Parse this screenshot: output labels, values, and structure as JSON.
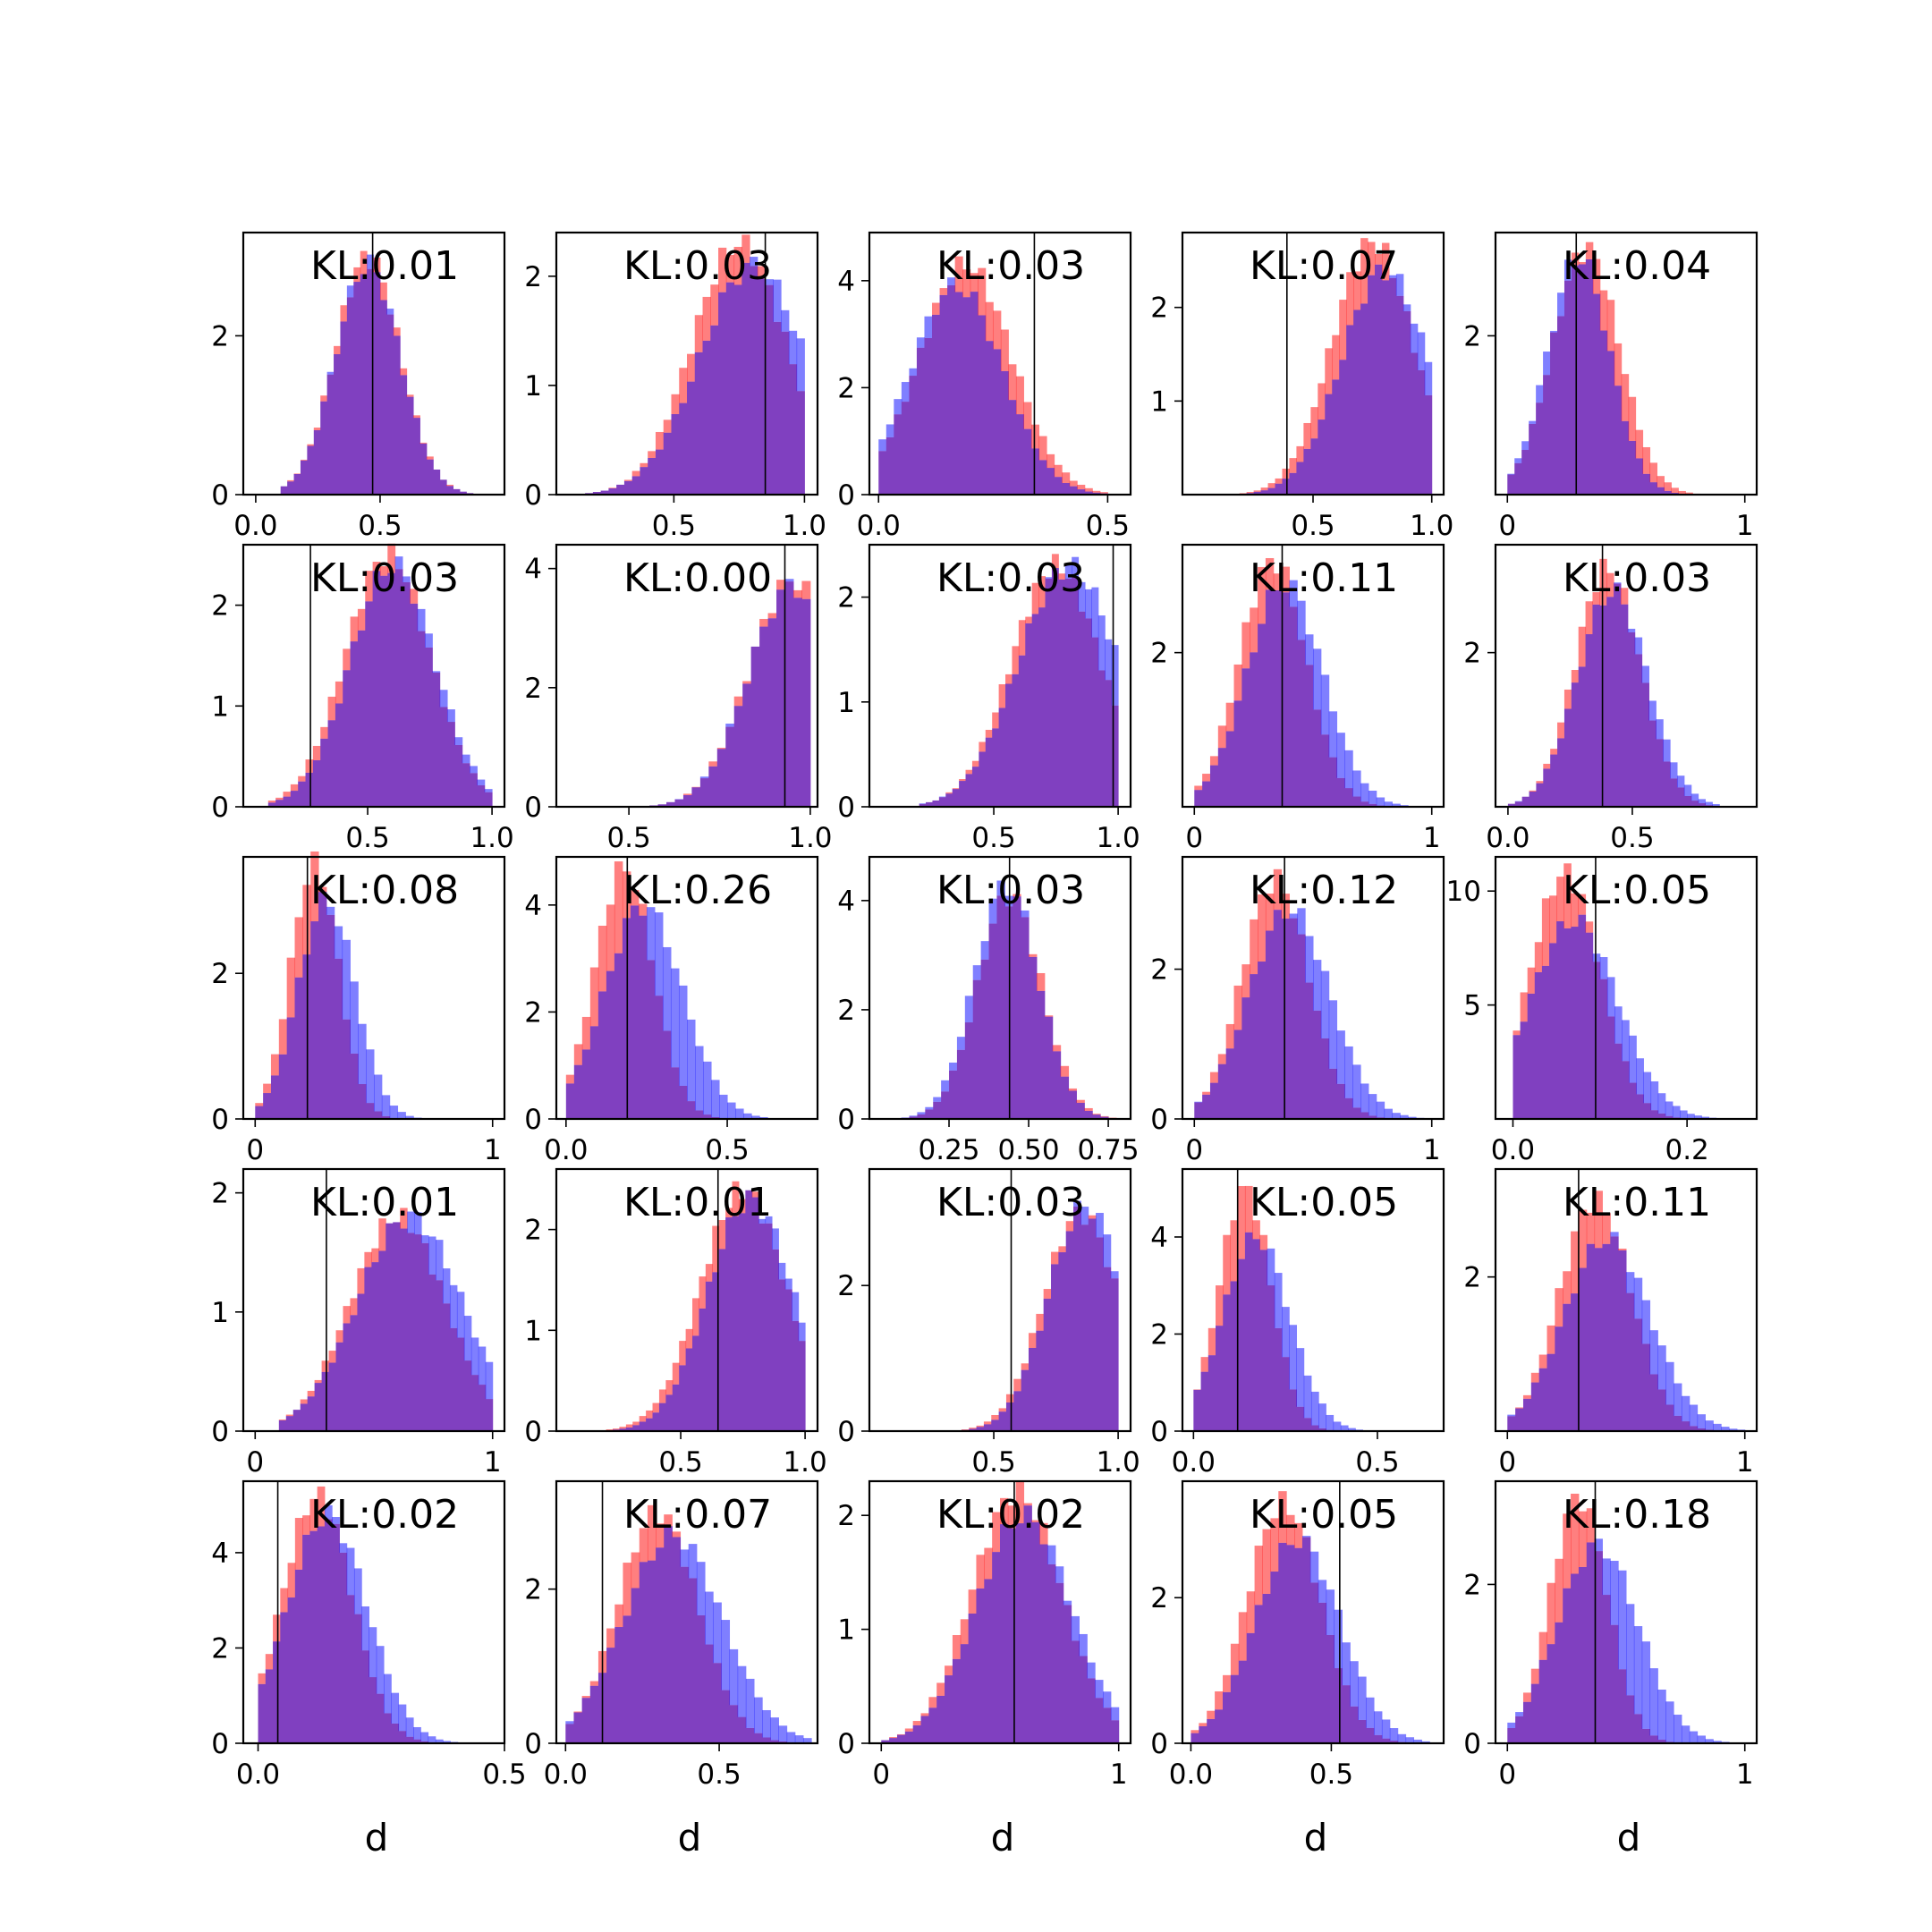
{
  "colors": {
    "red": "#ff0000",
    "blue": "#0000ff",
    "overlap": "#8040c0",
    "frame": "#000000"
  },
  "chart_data": [
    {
      "type": "bar",
      "title": "KL:0.01",
      "xlim": [
        -0.05,
        1.0
      ],
      "ylim": [
        0,
        3.3
      ],
      "xticks": [
        "0.0",
        "0.5"
      ],
      "xtick_values": [
        0,
        0.5
      ],
      "yticks": [
        "0",
        "2"
      ],
      "ytick_values": [
        0,
        2
      ],
      "vline": 0.47,
      "dist_red": {
        "mu": 0.45,
        "sd": 0.13,
        "peak": 3.0
      },
      "dist_blue": {
        "mu": 0.45,
        "sd": 0.13,
        "peak": 2.9
      },
      "range": [
        0.1,
        0.9
      ]
    },
    {
      "type": "bar",
      "title": "KL:0.03",
      "xlim": [
        0.05,
        1.05
      ],
      "ylim": [
        0,
        2.4
      ],
      "xticks": [
        "0.5",
        "1.0"
      ],
      "xtick_values": [
        0.5,
        1.0
      ],
      "yticks": [
        "0",
        "1",
        "2"
      ],
      "ytick_values": [
        0,
        1,
        2
      ],
      "vline": 0.85,
      "dist_red": {
        "mu": 0.75,
        "sd": 0.18,
        "peak": 2.3
      },
      "dist_blue": {
        "mu": 0.8,
        "sd": 0.2,
        "peak": 2.1
      },
      "range": [
        0.1,
        1.0
      ]
    },
    {
      "type": "bar",
      "title": "KL:0.03",
      "xlim": [
        -0.02,
        0.55
      ],
      "ylim": [
        0,
        4.9
      ],
      "xticks": [
        "0.0",
        "0.5"
      ],
      "xtick_values": [
        0,
        0.5
      ],
      "yticks": [
        "0",
        "2",
        "4"
      ],
      "ytick_values": [
        0,
        2,
        4
      ],
      "vline": 0.34,
      "dist_red": {
        "mu": 0.19,
        "sd": 0.1,
        "peak": 4.3
      },
      "dist_blue": {
        "mu": 0.17,
        "sd": 0.1,
        "peak": 3.9
      },
      "range": [
        0.0,
        0.5
      ]
    },
    {
      "type": "bar",
      "title": "KL:0.07",
      "xlim": [
        -0.05,
        1.05
      ],
      "ylim": [
        0,
        2.8
      ],
      "xticks": [
        "0.5",
        "1.0"
      ],
      "xtick_values": [
        0.5,
        1.0
      ],
      "yticks": [
        "1",
        "2"
      ],
      "ytick_values": [
        1,
        2
      ],
      "vline": 0.39,
      "dist_red": {
        "mu": 0.75,
        "sd": 0.17,
        "peak": 2.7
      },
      "dist_blue": {
        "mu": 0.8,
        "sd": 0.18,
        "peak": 2.4
      },
      "range": [
        0.1,
        1.0
      ]
    },
    {
      "type": "bar",
      "title": "KL:0.04",
      "xlim": [
        -0.05,
        1.05
      ],
      "ylim": [
        0,
        3.3
      ],
      "xticks": [
        "0",
        "1"
      ],
      "xtick_values": [
        0,
        1
      ],
      "yticks": [
        "2"
      ],
      "ytick_values": [
        2
      ],
      "vline": 0.29,
      "dist_red": {
        "mu": 0.33,
        "sd": 0.14,
        "peak": 3.1
      },
      "dist_blue": {
        "mu": 0.3,
        "sd": 0.13,
        "peak": 3.0
      },
      "range": [
        0.0,
        0.9
      ]
    },
    {
      "type": "bar",
      "title": "KL:0.03",
      "xlim": [
        0.0,
        1.05
      ],
      "ylim": [
        0,
        2.6
      ],
      "xticks": [
        "0.5",
        "1.0"
      ],
      "xtick_values": [
        0.5,
        1.0
      ],
      "yticks": [
        "0",
        "1",
        "2"
      ],
      "ytick_values": [
        0,
        1,
        2
      ],
      "vline": 0.27,
      "dist_red": {
        "mu": 0.58,
        "sd": 0.17,
        "peak": 2.5
      },
      "dist_blue": {
        "mu": 0.6,
        "sd": 0.17,
        "peak": 2.4
      },
      "range": [
        0.1,
        1.0
      ]
    },
    {
      "type": "bar",
      "title": "KL:0.00",
      "xlim": [
        0.3,
        1.02
      ],
      "ylim": [
        0,
        4.4
      ],
      "xticks": [
        "0.5",
        "1.0"
      ],
      "xtick_values": [
        0.5,
        1.0
      ],
      "yticks": [
        "0",
        "2",
        "4"
      ],
      "ytick_values": [
        0,
        2,
        4
      ],
      "vline": 0.93,
      "dist_red": {
        "mu": 0.95,
        "sd": 0.12,
        "peak": 3.8
      },
      "dist_blue": {
        "mu": 0.95,
        "sd": 0.12,
        "peak": 3.7
      },
      "range": [
        0.3,
        1.0
      ]
    },
    {
      "type": "bar",
      "title": "KL:0.03",
      "xlim": [
        0.0,
        1.05
      ],
      "ylim": [
        0,
        2.5
      ],
      "xticks": [
        "0.5",
        "1.0"
      ],
      "xtick_values": [
        0.5,
        1.0
      ],
      "yticks": [
        "0",
        "1",
        "2"
      ],
      "ytick_values": [
        0,
        1,
        2
      ],
      "vline": 0.98,
      "dist_red": {
        "mu": 0.75,
        "sd": 0.18,
        "peak": 2.3
      },
      "dist_blue": {
        "mu": 0.8,
        "sd": 0.2,
        "peak": 2.3
      },
      "range": [
        0.2,
        1.0
      ]
    },
    {
      "type": "bar",
      "title": "KL:0.11",
      "xlim": [
        -0.05,
        1.05
      ],
      "ylim": [
        0,
        3.4
      ],
      "xticks": [
        "0",
        "1"
      ],
      "xtick_values": [
        0,
        1
      ],
      "yticks": [
        "2"
      ],
      "ytick_values": [
        2
      ],
      "vline": 0.37,
      "dist_red": {
        "mu": 0.33,
        "sd": 0.14,
        "peak": 3.2
      },
      "dist_blue": {
        "mu": 0.38,
        "sd": 0.16,
        "peak": 2.9
      },
      "range": [
        0.0,
        1.0
      ]
    },
    {
      "type": "bar",
      "title": "KL:0.03",
      "xlim": [
        -0.05,
        1.0
      ],
      "ylim": [
        0,
        3.4
      ],
      "xticks": [
        "0.0",
        "0.5"
      ],
      "xtick_values": [
        0,
        0.5
      ],
      "yticks": [
        "2"
      ],
      "ytick_values": [
        2
      ],
      "vline": 0.38,
      "dist_red": {
        "mu": 0.4,
        "sd": 0.13,
        "peak": 3.1
      },
      "dist_blue": {
        "mu": 0.42,
        "sd": 0.14,
        "peak": 2.8
      },
      "range": [
        0.0,
        0.85
      ]
    },
    {
      "type": "bar",
      "title": "KL:0.08",
      "xlim": [
        -0.05,
        1.05
      ],
      "ylim": [
        0,
        3.6
      ],
      "xticks": [
        "0",
        "1"
      ],
      "xtick_values": [
        0,
        1
      ],
      "yticks": [
        "0",
        "2"
      ],
      "ytick_values": [
        0,
        2
      ],
      "vline": 0.22,
      "dist_red": {
        "mu": 0.25,
        "sd": 0.1,
        "peak": 3.5
      },
      "dist_blue": {
        "mu": 0.3,
        "sd": 0.12,
        "peak": 3.0
      },
      "range": [
        0.0,
        1.0
      ]
    },
    {
      "type": "bar",
      "title": "KL:0.26",
      "xlim": [
        -0.03,
        0.78
      ],
      "ylim": [
        0,
        4.9
      ],
      "xticks": [
        "0.0",
        "0.5"
      ],
      "xtick_values": [
        0,
        0.5
      ],
      "yticks": [
        "0",
        "2",
        "4"
      ],
      "ytick_values": [
        0,
        2,
        4
      ],
      "vline": 0.19,
      "dist_red": {
        "mu": 0.18,
        "sd": 0.09,
        "peak": 4.7
      },
      "dist_blue": {
        "mu": 0.24,
        "sd": 0.12,
        "peak": 4.0
      },
      "range": [
        0.0,
        0.75
      ]
    },
    {
      "type": "bar",
      "title": "KL:0.03",
      "xlim": [
        0.0,
        0.82
      ],
      "ylim": [
        0,
        4.8
      ],
      "xticks": [
        "0.25",
        "0.50",
        "0.75"
      ],
      "xtick_values": [
        0.25,
        0.5,
        0.75
      ],
      "yticks": [
        "0",
        "2",
        "4"
      ],
      "ytick_values": [
        0,
        2,
        4
      ],
      "vline": 0.44,
      "dist_red": {
        "mu": 0.44,
        "sd": 0.1,
        "peak": 4.1
      },
      "dist_blue": {
        "mu": 0.43,
        "sd": 0.1,
        "peak": 4.3
      },
      "range": [
        0.05,
        0.8
      ]
    },
    {
      "type": "bar",
      "title": "KL:0.12",
      "xlim": [
        -0.05,
        1.05
      ],
      "ylim": [
        0,
        3.5
      ],
      "xticks": [
        "0",
        "1"
      ],
      "xtick_values": [
        0,
        1
      ],
      "yticks": [
        "0",
        "2"
      ],
      "ytick_values": [
        0,
        2
      ],
      "vline": 0.38,
      "dist_red": {
        "mu": 0.34,
        "sd": 0.14,
        "peak": 3.2
      },
      "dist_blue": {
        "mu": 0.4,
        "sd": 0.17,
        "peak": 2.8
      },
      "range": [
        0.0,
        1.0
      ]
    },
    {
      "type": "bar",
      "title": "KL:0.05",
      "xlim": [
        -0.02,
        0.28
      ],
      "ylim": [
        0,
        11.5
      ],
      "xticks": [
        "0.0",
        "0.2"
      ],
      "xtick_values": [
        0,
        0.2
      ],
      "yticks": [
        "5",
        "10"
      ],
      "ytick_values": [
        5,
        10
      ],
      "vline": 0.095,
      "dist_red": {
        "mu": 0.06,
        "sd": 0.04,
        "peak": 10.8
      },
      "dist_blue": {
        "mu": 0.07,
        "sd": 0.05,
        "peak": 8.7
      },
      "range": [
        0.0,
        0.25
      ]
    },
    {
      "type": "bar",
      "title": "KL:0.01",
      "xlim": [
        -0.05,
        1.05
      ],
      "ylim": [
        0,
        2.2
      ],
      "xticks": [
        "0",
        "1"
      ],
      "xtick_values": [
        0,
        1
      ],
      "yticks": [
        "0",
        "1",
        "2"
      ],
      "ytick_values": [
        0,
        1,
        2
      ],
      "vline": 0.3,
      "dist_red": {
        "mu": 0.6,
        "sd": 0.2,
        "peak": 1.8
      },
      "dist_blue": {
        "mu": 0.65,
        "sd": 0.22,
        "peak": 1.8
      },
      "range": [
        0.1,
        1.0
      ]
    },
    {
      "type": "bar",
      "title": "KL:0.01",
      "xlim": [
        0.0,
        1.05
      ],
      "ylim": [
        0,
        2.6
      ],
      "xticks": [
        "0.5",
        "1.0"
      ],
      "xtick_values": [
        0.5,
        1.0
      ],
      "yticks": [
        "0",
        "1",
        "2"
      ],
      "ytick_values": [
        0,
        1,
        2
      ],
      "vline": 0.65,
      "dist_red": {
        "mu": 0.75,
        "sd": 0.17,
        "peak": 2.4
      },
      "dist_blue": {
        "mu": 0.78,
        "sd": 0.17,
        "peak": 2.3
      },
      "range": [
        0.2,
        1.0
      ]
    },
    {
      "type": "bar",
      "title": "KL:0.03",
      "xlim": [
        0.0,
        1.05
      ],
      "ylim": [
        0,
        3.6
      ],
      "xticks": [
        "0.5",
        "1.0"
      ],
      "xtick_values": [
        0.5,
        1.0
      ],
      "yticks": [
        "0",
        "2"
      ],
      "ytick_values": [
        0,
        2
      ],
      "vline": 0.57,
      "dist_red": {
        "mu": 0.85,
        "sd": 0.15,
        "peak": 3.0
      },
      "dist_blue": {
        "mu": 0.87,
        "sd": 0.15,
        "peak": 3.1
      },
      "range": [
        0.1,
        1.0
      ]
    },
    {
      "type": "bar",
      "title": "KL:0.05",
      "xlim": [
        -0.03,
        0.68
      ],
      "ylim": [
        0,
        5.4
      ],
      "xticks": [
        "0.0",
        "0.5"
      ],
      "xtick_values": [
        0,
        0.5
      ],
      "yticks": [
        "0",
        "2",
        "4"
      ],
      "ytick_values": [
        0,
        2,
        4
      ],
      "vline": 0.12,
      "dist_red": {
        "mu": 0.14,
        "sd": 0.07,
        "peak": 5.0
      },
      "dist_blue": {
        "mu": 0.17,
        "sd": 0.09,
        "peak": 4.0
      },
      "range": [
        0.0,
        0.6
      ]
    },
    {
      "type": "bar",
      "title": "KL:0.11",
      "xlim": [
        -0.05,
        1.05
      ],
      "ylim": [
        0,
        3.4
      ],
      "xticks": [
        "0",
        "1"
      ],
      "xtick_values": [
        0,
        1
      ],
      "yticks": [
        "2"
      ],
      "ytick_values": [
        2
      ],
      "vline": 0.3,
      "dist_red": {
        "mu": 0.37,
        "sd": 0.15,
        "peak": 3.0
      },
      "dist_blue": {
        "mu": 0.42,
        "sd": 0.18,
        "peak": 2.5
      },
      "range": [
        0.0,
        1.0
      ]
    },
    {
      "type": "bar",
      "title": "KL:0.02",
      "xlim": [
        -0.03,
        0.5
      ],
      "ylim": [
        0,
        5.5
      ],
      "xticks": [
        "0.0",
        "0.5"
      ],
      "xtick_values": [
        0,
        0.5
      ],
      "yticks": [
        "0",
        "2",
        "4"
      ],
      "ytick_values": [
        0,
        2,
        4
      ],
      "vline": 0.04,
      "dist_red": {
        "mu": 0.12,
        "sd": 0.07,
        "peak": 5.2
      },
      "dist_blue": {
        "mu": 0.14,
        "sd": 0.08,
        "peak": 4.8
      },
      "range": [
        0.0,
        0.45
      ]
    },
    {
      "type": "bar",
      "title": "KL:0.07",
      "xlim": [
        -0.03,
        0.82
      ],
      "ylim": [
        0,
        3.4
      ],
      "xticks": [
        "0.0",
        "0.5"
      ],
      "xtick_values": [
        0,
        0.5
      ],
      "yticks": [
        "0",
        "2"
      ],
      "ytick_values": [
        0,
        2
      ],
      "vline": 0.12,
      "dist_red": {
        "mu": 0.3,
        "sd": 0.13,
        "peak": 3.0
      },
      "dist_blue": {
        "mu": 0.35,
        "sd": 0.16,
        "peak": 2.7
      },
      "range": [
        0.0,
        0.8
      ]
    },
    {
      "type": "bar",
      "title": "KL:0.02",
      "xlim": [
        -0.05,
        1.05
      ],
      "ylim": [
        0,
        2.3
      ],
      "xticks": [
        "0",
        "1"
      ],
      "xtick_values": [
        0,
        1
      ],
      "yticks": [
        "0",
        "1",
        "2"
      ],
      "ytick_values": [
        0,
        1,
        2
      ],
      "vline": 0.56,
      "dist_red": {
        "mu": 0.57,
        "sd": 0.19,
        "peak": 2.2
      },
      "dist_blue": {
        "mu": 0.6,
        "sd": 0.2,
        "peak": 2.0
      },
      "range": [
        0.0,
        1.0
      ]
    },
    {
      "type": "bar",
      "title": "KL:0.05",
      "xlim": [
        -0.03,
        0.9
      ],
      "ylim": [
        0,
        3.6
      ],
      "xticks": [
        "0.0",
        "0.5"
      ],
      "xtick_values": [
        0,
        0.5
      ],
      "yticks": [
        "0",
        "2"
      ],
      "ytick_values": [
        0,
        2
      ],
      "vline": 0.53,
      "dist_red": {
        "mu": 0.33,
        "sd": 0.13,
        "peak": 3.3
      },
      "dist_blue": {
        "mu": 0.38,
        "sd": 0.15,
        "peak": 2.8
      },
      "range": [
        0.0,
        0.85
      ]
    },
    {
      "type": "bar",
      "title": "KL:0.18",
      "xlim": [
        -0.05,
        1.05
      ],
      "ylim": [
        0,
        3.3
      ],
      "xticks": [
        "0",
        "1"
      ],
      "xtick_values": [
        0,
        1
      ],
      "yticks": [
        "0",
        "2"
      ],
      "ytick_values": [
        0,
        2
      ],
      "vline": 0.37,
      "dist_red": {
        "mu": 0.3,
        "sd": 0.12,
        "peak": 3.1
      },
      "dist_blue": {
        "mu": 0.38,
        "sd": 0.17,
        "peak": 2.5
      },
      "range": [
        0.0,
        1.0
      ]
    }
  ],
  "xlabel": "d"
}
